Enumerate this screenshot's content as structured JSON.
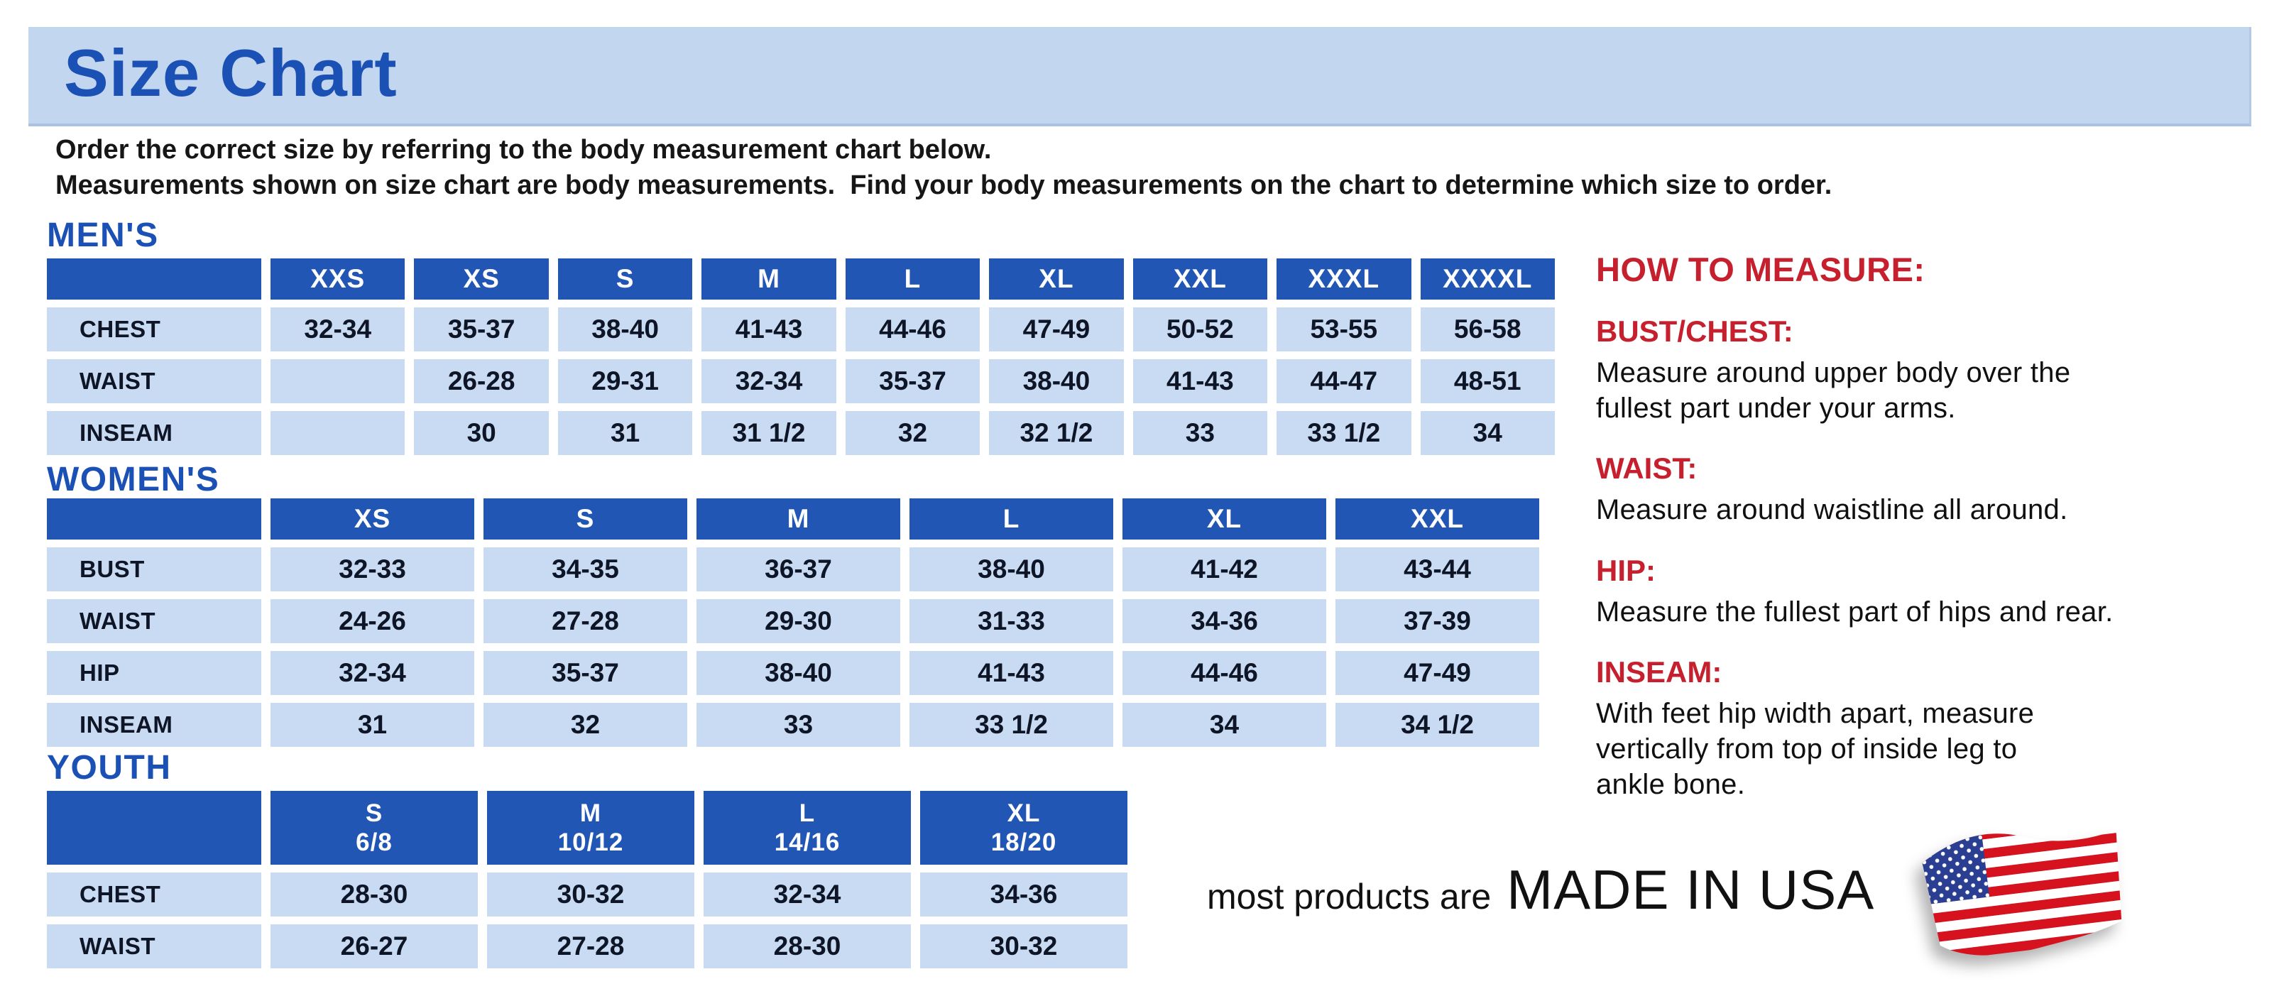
{
  "header": {
    "title": "Size Chart",
    "intro_line1": "Order the correct size by referring to the body measurement chart below.",
    "intro_line2": "Measurements shown on size chart are body measurements.  Find your body measurements on the chart to determine which size to order."
  },
  "tables": {
    "mens": {
      "heading": "MEN'S",
      "size_headers": [
        [
          "XXS"
        ],
        [
          "XS"
        ],
        [
          "S"
        ],
        [
          "M"
        ],
        [
          "L"
        ],
        [
          "XL"
        ],
        [
          "XXL"
        ],
        [
          "XXXL"
        ],
        [
          "XXXXL"
        ]
      ],
      "rows": [
        {
          "label": "CHEST",
          "values": [
            "32-34",
            "35-37",
            "38-40",
            "41-43",
            "44-46",
            "47-49",
            "50-52",
            "53-55",
            "56-58"
          ]
        },
        {
          "label": "WAIST",
          "values": [
            "",
            "26-28",
            "29-31",
            "32-34",
            "35-37",
            "38-40",
            "41-43",
            "44-47",
            "48-51"
          ]
        },
        {
          "label": "INSEAM",
          "values": [
            "",
            "30",
            "31",
            "31 1/2",
            "32",
            "32 1/2",
            "33",
            "33 1/2",
            "34"
          ]
        }
      ]
    },
    "womens": {
      "heading": "WOMEN'S",
      "size_headers": [
        [
          "XS"
        ],
        [
          "S"
        ],
        [
          "M"
        ],
        [
          "L"
        ],
        [
          "XL"
        ],
        [
          "XXL"
        ]
      ],
      "rows": [
        {
          "label": "BUST",
          "values": [
            "32-33",
            "34-35",
            "36-37",
            "38-40",
            "41-42",
            "43-44"
          ]
        },
        {
          "label": "WAIST",
          "values": [
            "24-26",
            "27-28",
            "29-30",
            "31-33",
            "34-36",
            "37-39"
          ]
        },
        {
          "label": "HIP",
          "values": [
            "32-34",
            "35-37",
            "38-40",
            "41-43",
            "44-46",
            "47-49"
          ]
        },
        {
          "label": "INSEAM",
          "values": [
            "31",
            "32",
            "33",
            "33 1/2",
            "34",
            "34 1/2"
          ]
        }
      ]
    },
    "youth": {
      "heading": "YOUTH",
      "size_headers": [
        [
          "S",
          "6/8"
        ],
        [
          "M",
          "10/12"
        ],
        [
          "L",
          "14/16"
        ],
        [
          "XL",
          "18/20"
        ]
      ],
      "rows": [
        {
          "label": "CHEST",
          "values": [
            "28-30",
            "30-32",
            "32-34",
            "34-36"
          ]
        },
        {
          "label": "WAIST",
          "values": [
            "26-27",
            "27-28",
            "28-30",
            "30-32"
          ]
        }
      ]
    }
  },
  "how_to_measure": {
    "heading": "HOW TO MEASURE:",
    "items": [
      {
        "term": "BUST/CHEST:",
        "desc_lines": [
          "Measure around upper body over the",
          "fullest part under your arms."
        ]
      },
      {
        "term": "WAIST:",
        "desc_lines": [
          "Measure around waistline all around."
        ]
      },
      {
        "term": "HIP:",
        "desc_lines": [
          "Measure the fullest part of hips and rear."
        ]
      },
      {
        "term": "INSEAM:",
        "desc_lines": [
          "With feet hip width apart, measure",
          "vertically from top of inside leg to",
          "ankle bone."
        ]
      }
    ]
  },
  "footer": {
    "prefix": "most products are",
    "made_in": "MADE IN USA",
    "flag_icon": "usa-flag-icon"
  },
  "colors": {
    "header_blue": "#2156b5",
    "cell_blue": "#c9dbf2",
    "banner_blue": "#c2d6ef",
    "title_blue": "#1b50b5",
    "accent_red": "#c6202e",
    "flag_red": "#d6121f",
    "flag_blue": "#2b3f92",
    "text_dark": "#121212"
  }
}
